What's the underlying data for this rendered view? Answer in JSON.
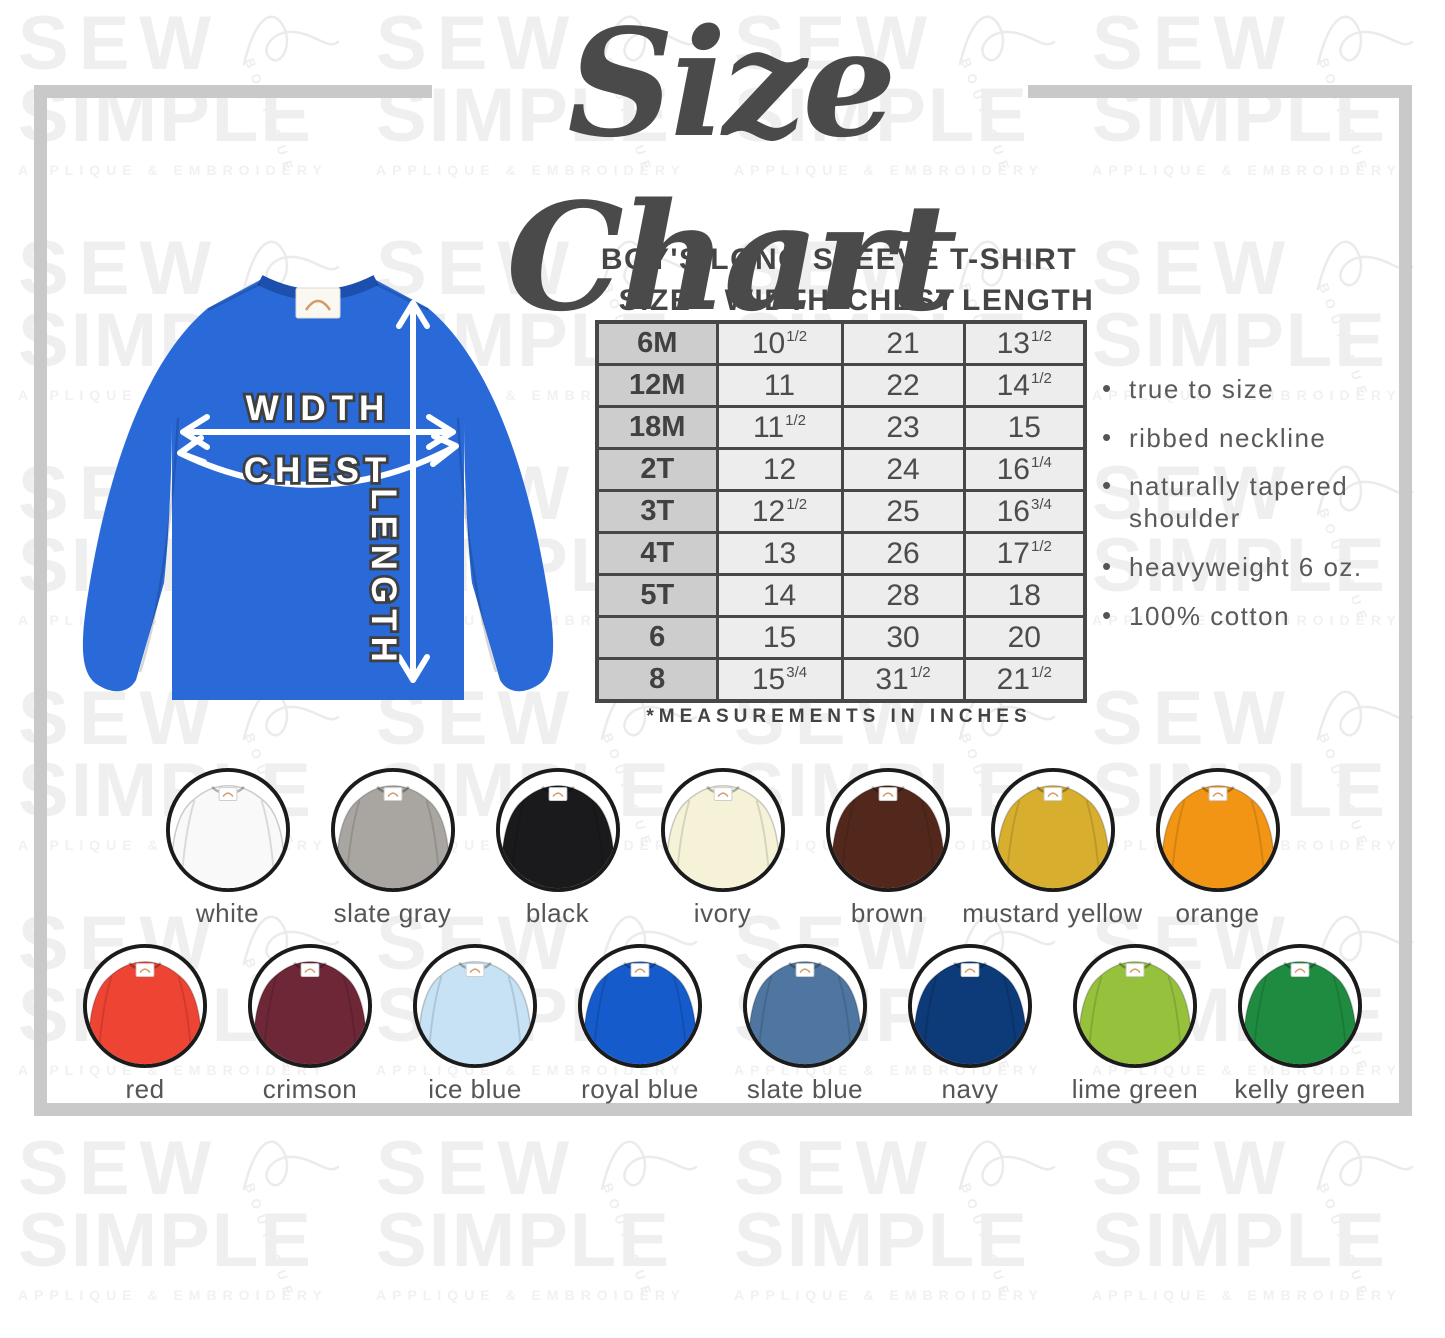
{
  "brand": {
    "watermark_line1": "SEW",
    "watermark_line2": "SIMPLE",
    "watermark_arc": "BOUTIQUE",
    "watermark_tagline": "APPLIQUE & EMBROIDERY"
  },
  "title": "Size Chart",
  "diagram": {
    "shirt_color": "#2a6ad8",
    "labels": {
      "width": "WIDTH",
      "chest": "CHEST",
      "length": "LENGTH"
    }
  },
  "size_table": {
    "heading": "BOY'S LONG SLEEVE T-SHIRT",
    "columns": [
      "SIZE",
      "WIDTH",
      "CHEST",
      "LENGTH"
    ],
    "rows": [
      {
        "size": "6M",
        "width": [
          "10",
          "1/2"
        ],
        "chest": [
          "21",
          ""
        ],
        "length": [
          "13",
          "1/2"
        ]
      },
      {
        "size": "12M",
        "width": [
          "11",
          ""
        ],
        "chest": [
          "22",
          ""
        ],
        "length": [
          "14",
          "1/2"
        ]
      },
      {
        "size": "18M",
        "width": [
          "11",
          "1/2"
        ],
        "chest": [
          "23",
          ""
        ],
        "length": [
          "15",
          ""
        ]
      },
      {
        "size": "2T",
        "width": [
          "12",
          ""
        ],
        "chest": [
          "24",
          ""
        ],
        "length": [
          "16",
          "1/4"
        ]
      },
      {
        "size": "3T",
        "width": [
          "12",
          "1/2"
        ],
        "chest": [
          "25",
          ""
        ],
        "length": [
          "16",
          "3/4"
        ]
      },
      {
        "size": "4T",
        "width": [
          "13",
          ""
        ],
        "chest": [
          "26",
          ""
        ],
        "length": [
          "17",
          "1/2"
        ]
      },
      {
        "size": "5T",
        "width": [
          "14",
          ""
        ],
        "chest": [
          "28",
          ""
        ],
        "length": [
          "18",
          ""
        ]
      },
      {
        "size": "6",
        "width": [
          "15",
          ""
        ],
        "chest": [
          "30",
          ""
        ],
        "length": [
          "20",
          ""
        ]
      },
      {
        "size": "8",
        "width": [
          "15",
          "3/4"
        ],
        "chest": [
          "31",
          "1/2"
        ],
        "length": [
          "21",
          "1/2"
        ]
      }
    ],
    "footnote": "*MEASUREMENTS IN INCHES"
  },
  "features": [
    "true to size",
    "ribbed neckline",
    "naturally tapered shoulder",
    "heavyweight 6 oz.",
    "100% cotton"
  ],
  "color_swatches": {
    "row1": [
      {
        "label": "white",
        "color": "#f9f9f9"
      },
      {
        "label": "slate gray",
        "color": "#a9a5a0"
      },
      {
        "label": "black",
        "color": "#1a1a1d"
      },
      {
        "label": "ivory",
        "color": "#f5f2d8"
      },
      {
        "label": "brown",
        "color": "#53281c"
      },
      {
        "label": "mustard yellow",
        "color": "#d8ae2f"
      },
      {
        "label": "orange",
        "color": "#f29414"
      }
    ],
    "row2": [
      {
        "label": "red",
        "color": "#ee4434"
      },
      {
        "label": "crimson",
        "color": "#6e2737"
      },
      {
        "label": "ice blue",
        "color": "#c6e2f4"
      },
      {
        "label": "royal blue",
        "color": "#155bcb"
      },
      {
        "label": "slate blue",
        "color": "#4e76a1"
      },
      {
        "label": "navy",
        "color": "#0d3a78"
      },
      {
        "label": "lime green",
        "color": "#96c13d"
      },
      {
        "label": "kelly green",
        "color": "#1f8b40"
      }
    ]
  }
}
